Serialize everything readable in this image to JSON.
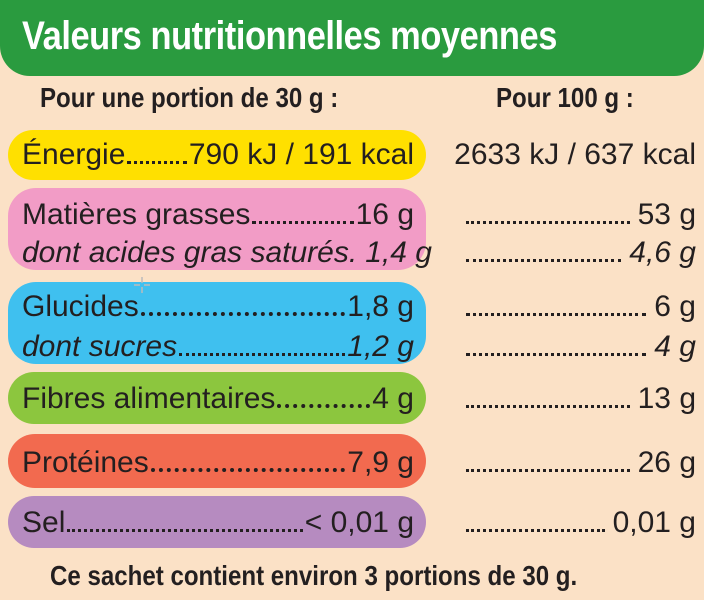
{
  "title": "Valeurs nutritionnelles moyennes",
  "headers": {
    "portion": "Pour une portion de 30 g :",
    "per100": "Pour 100 g :"
  },
  "rows": [
    {
      "label": "Énergie",
      "portion": "790 kJ / 191 kcal",
      "per100": "2633 kJ / 637 kcal",
      "color": "#ffe000"
    },
    {
      "label": "Matières grasses",
      "portion": "16 g",
      "per100": "53 g",
      "color": "#f29cc6"
    },
    {
      "label": "dont acides gras saturés.",
      "portion": "1,4 g",
      "per100": "4,6 g",
      "color": "#f29cc6"
    },
    {
      "label": "Glucides",
      "portion": "1,8 g",
      "per100": "6 g",
      "color": "#3fc0ef"
    },
    {
      "label": "dont sucres",
      "portion": "1,2 g",
      "per100": "4 g",
      "color": "#3fc0ef"
    },
    {
      "label": "Fibres alimentaires",
      "portion": "4 g",
      "per100": "13 g",
      "color": "#8cc63e"
    },
    {
      "label": "Protéines",
      "portion": "7,9 g",
      "per100": "26 g",
      "color": "#f26a4f"
    },
    {
      "label": "Sel",
      "portion": "< 0,01 g",
      "per100": "0,01 g",
      "color": "#b68bc0"
    }
  ],
  "footer": "Ce sachet contient environ 3 portions de 30 g.",
  "icons": {
    "cursor": "crosshair-cursor-icon"
  }
}
